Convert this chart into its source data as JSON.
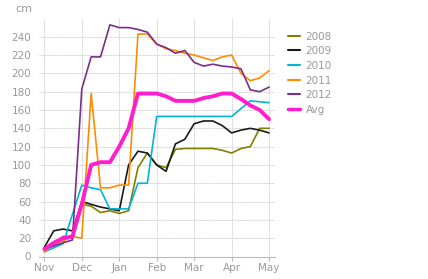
{
  "title": "cm",
  "ylim": [
    0,
    260
  ],
  "yticks": [
    0,
    20,
    40,
    60,
    80,
    100,
    120,
    140,
    160,
    180,
    200,
    220,
    240
  ],
  "month_labels": [
    "Nov",
    "Dec",
    "Jan",
    "Feb",
    "Mar",
    "Apr",
    "May"
  ],
  "background_color": "#ffffff",
  "grid_color": "#cccccc",
  "series_order": [
    "2008",
    "2009",
    "2010",
    "2011",
    "2012",
    "Avg"
  ],
  "series": {
    "2008": {
      "color": "#7f7f00",
      "lw": 1.2,
      "x": [
        0,
        0.25,
        0.5,
        0.75,
        1.0,
        1.25,
        1.5,
        1.75,
        2.0,
        2.25,
        2.5,
        2.75,
        3.0,
        3.25,
        3.5,
        3.75,
        4.0,
        4.25,
        4.5,
        4.75,
        5.0,
        5.25,
        5.5,
        5.75,
        6.0
      ],
      "y": [
        10,
        13,
        22,
        20,
        57,
        55,
        48,
        50,
        47,
        50,
        97,
        113,
        100,
        97,
        117,
        118,
        118,
        118,
        118,
        116,
        113,
        118,
        120,
        140,
        140
      ]
    },
    "2009": {
      "color": "#1a1a1a",
      "lw": 1.2,
      "x": [
        0,
        0.25,
        0.5,
        0.75,
        1.0,
        1.25,
        1.5,
        1.75,
        2.0,
        2.25,
        2.5,
        2.75,
        3.0,
        3.25,
        3.5,
        3.75,
        4.0,
        4.25,
        4.5,
        4.75,
        5.0,
        5.25,
        5.5,
        5.75,
        6.0
      ],
      "y": [
        10,
        28,
        30,
        28,
        60,
        57,
        54,
        52,
        50,
        100,
        115,
        113,
        100,
        93,
        123,
        128,
        145,
        148,
        148,
        143,
        135,
        138,
        140,
        138,
        135
      ]
    },
    "2010": {
      "color": "#00b4d8",
      "lw": 1.2,
      "x": [
        0,
        0.5,
        1.0,
        1.25,
        1.5,
        1.75,
        2.0,
        2.25,
        2.5,
        2.75,
        3.0,
        3.25,
        3.5,
        3.75,
        4.0,
        4.25,
        4.5,
        4.75,
        5.0,
        5.5,
        6.0
      ],
      "y": [
        5,
        14,
        78,
        75,
        73,
        52,
        52,
        52,
        80,
        80,
        153,
        153,
        153,
        153,
        153,
        153,
        153,
        153,
        153,
        170,
        168
      ]
    },
    "2011": {
      "color": "#ff8c00",
      "lw": 1.2,
      "x": [
        0,
        0.25,
        0.5,
        0.75,
        1.0,
        1.25,
        1.5,
        1.75,
        2.0,
        2.25,
        2.5,
        2.75,
        3.0,
        3.25,
        3.5,
        3.75,
        4.0,
        4.25,
        4.5,
        4.75,
        5.0,
        5.25,
        5.5,
        5.75,
        6.0
      ],
      "y": [
        5,
        13,
        17,
        22,
        20,
        178,
        75,
        75,
        78,
        78,
        243,
        243,
        232,
        227,
        225,
        222,
        220,
        217,
        214,
        218,
        220,
        200,
        192,
        195,
        203
      ]
    },
    "2012": {
      "color": "#7b2d8b",
      "lw": 1.2,
      "x": [
        0,
        0.5,
        0.75,
        1.0,
        1.25,
        1.5,
        1.75,
        2.0,
        2.25,
        2.5,
        2.75,
        3.0,
        3.25,
        3.5,
        3.75,
        4.0,
        4.25,
        4.5,
        4.75,
        5.0,
        5.25,
        5.5,
        5.75,
        6.0
      ],
      "y": [
        8,
        15,
        18,
        183,
        218,
        218,
        253,
        250,
        250,
        248,
        245,
        232,
        228,
        222,
        225,
        212,
        208,
        210,
        208,
        207,
        205,
        182,
        180,
        185
      ]
    },
    "Avg": {
      "color": "#ff1dce",
      "lw": 2.8,
      "x": [
        0,
        0.25,
        0.5,
        0.75,
        1.0,
        1.25,
        1.5,
        1.75,
        2.0,
        2.25,
        2.5,
        2.75,
        3.0,
        3.25,
        3.5,
        3.75,
        4.0,
        4.25,
        4.5,
        4.75,
        5.0,
        5.25,
        5.5,
        5.75,
        6.0
      ],
      "y": [
        8,
        15,
        20,
        22,
        57,
        100,
        103,
        103,
        120,
        140,
        178,
        178,
        178,
        175,
        170,
        170,
        170,
        173,
        175,
        178,
        178,
        172,
        165,
        160,
        150
      ]
    }
  }
}
